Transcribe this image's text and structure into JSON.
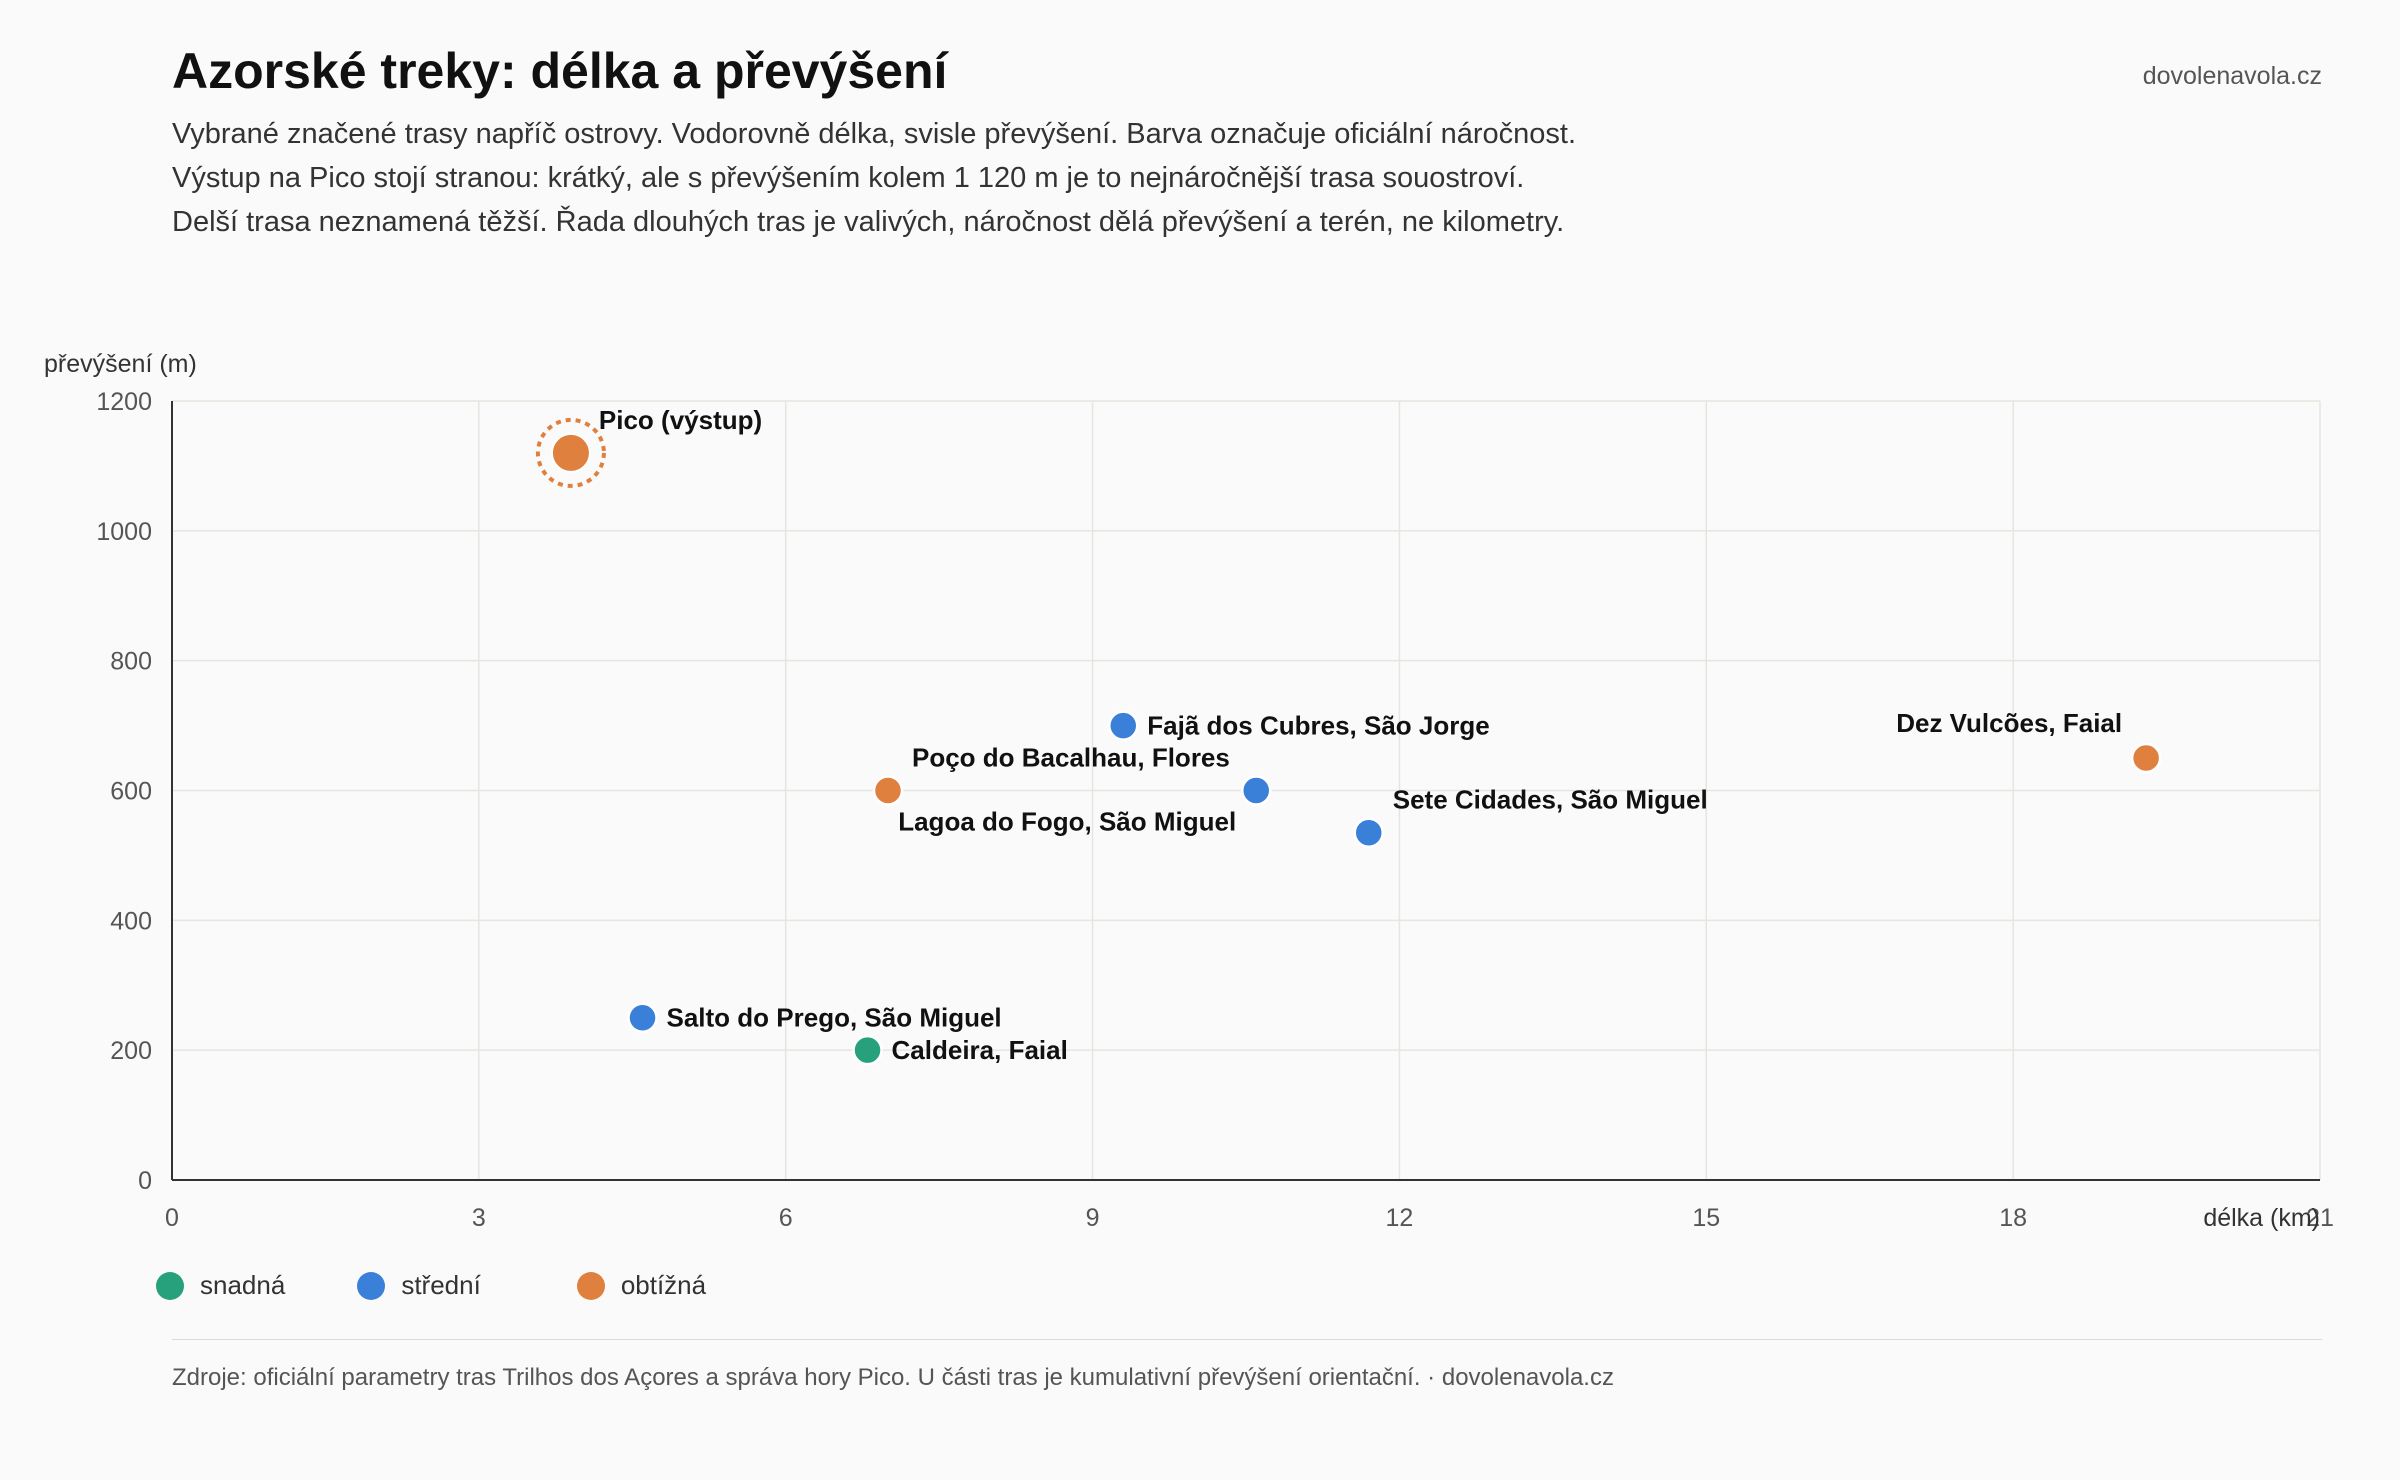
{
  "header": {
    "title": "Azorské treky: délka a převýšení",
    "brand": "dovolenavola.cz",
    "subtitle_lines": [
      "Vybrané značené trasy napříč ostrovy. Vodorovně délka, svisle převýšení. Barva označuje oficiální náročnost.",
      "Výstup na Pico stojí stranou: krátký, ale s převýšením kolem 1 120 m je to nejnáročnější trasa souostroví.",
      "Delší trasa neznamená těžší. Řada dlouhých tras je valivých, náročnost dělá převýšení a terén, ne kilometry."
    ]
  },
  "colors": {
    "snadna": "#26a17b",
    "stredni": "#3a80d8",
    "obtizna": "#e0803f",
    "grid": "#e6e6e0",
    "axis": "#333333"
  },
  "legend": [
    {
      "label": "snadná",
      "key": "snadna"
    },
    {
      "label": "střední",
      "key": "stredni"
    },
    {
      "label": "obtížná",
      "key": "obtizna"
    }
  ],
  "footer": {
    "text": "Zdroje: oficiální parametry tras Trilhos dos Açores a správa hory Pico. U části tras je kumulativní převýšení orientační. · dovolenavola.cz"
  },
  "chart_data": {
    "type": "scatter",
    "xlabel": "délka (km)",
    "ylabel": "převýšení (m)",
    "xlim": [
      0,
      21
    ],
    "ylim": [
      0,
      1200
    ],
    "xticks": [
      0,
      3,
      6,
      9,
      12,
      15,
      18,
      21
    ],
    "yticks": [
      0,
      200,
      400,
      600,
      800,
      1000,
      1200
    ],
    "grid": true,
    "legend_position": "bottom-left",
    "points": [
      {
        "label": "Pico (výstup)",
        "x": 3.9,
        "y": 1120,
        "difficulty": "obtizna",
        "highlight": true,
        "label_pos": "right-top"
      },
      {
        "label": "Fajã dos Cubres, São Jorge",
        "x": 9.3,
        "y": 700,
        "difficulty": "stredni",
        "label_pos": "right"
      },
      {
        "label": "Dez Vulcões, Faial",
        "x": 19.3,
        "y": 650,
        "difficulty": "obtizna",
        "label_pos": "left-top"
      },
      {
        "label": "Poço do Bacalhau, Flores",
        "x": 7.0,
        "y": 600,
        "difficulty": "obtizna",
        "label_pos": "right-top"
      },
      {
        "label": "Lagoa do Fogo, São Miguel",
        "x": 10.6,
        "y": 600,
        "difficulty": "stredni",
        "label_pos": "left-bottom"
      },
      {
        "label": "Sete Cidades, São Miguel",
        "x": 11.7,
        "y": 535,
        "difficulty": "stredni",
        "label_pos": "right-top"
      },
      {
        "label": "Salto do Prego, São Miguel",
        "x": 4.6,
        "y": 250,
        "difficulty": "stredni",
        "label_pos": "right"
      },
      {
        "label": "Caldeira, Faial",
        "x": 6.8,
        "y": 200,
        "difficulty": "snadna",
        "label_pos": "right"
      }
    ]
  }
}
